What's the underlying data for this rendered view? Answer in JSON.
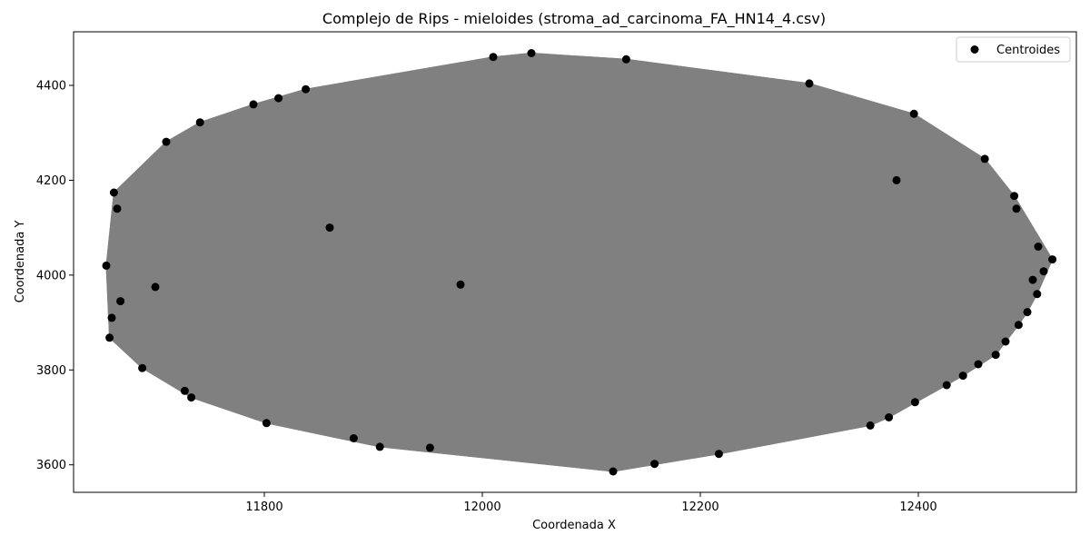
{
  "chart_data": {
    "type": "scatter",
    "title": "Complejo de Rips - mieloides (stroma_ad_carcinoma_FA_HN14_4.csv)",
    "xlabel": "Coordenada X",
    "ylabel": "Coordenada Y",
    "xlim": [
      11625,
      12545
    ],
    "ylim": [
      3542,
      4513
    ],
    "xticks": [
      11800,
      12000,
      12200,
      12400
    ],
    "yticks": [
      3600,
      3800,
      4000,
      4200,
      4400
    ],
    "legend": {
      "position": "top-right",
      "entries": [
        "Centroides"
      ]
    },
    "grid": false,
    "colors": {
      "points": "#000000",
      "edges": "#808080",
      "fill": "#808080"
    },
    "series": [
      {
        "name": "Centroides",
        "x": [
          12045,
          12010,
          12132,
          12300,
          12396,
          12461,
          12488,
          12490,
          12510,
          12523,
          12515,
          12509,
          12500,
          12492,
          12471,
          12455,
          12441,
          12426,
          12397,
          12373,
          12356,
          12217,
          12158,
          12120,
          11952,
          11906,
          11882,
          11802,
          11733,
          11727,
          11688,
          11658,
          11660,
          11665,
          11662,
          11710,
          11741,
          11790,
          11813,
          11838,
          11655,
          11668,
          11700,
          11980,
          11860,
          12380,
          12480,
          12505
        ],
        "y": [
          4468,
          4460,
          4455,
          4404,
          4340,
          4245,
          4167,
          4140,
          4060,
          4033,
          4008,
          3960,
          3922,
          3895,
          3832,
          3812,
          3788,
          3768,
          3732,
          3700,
          3683,
          3623,
          3602,
          3586,
          3636,
          3638,
          3656,
          3688,
          3742,
          3756,
          3804,
          3868,
          3910,
          4140,
          4174,
          4281,
          4322,
          4360,
          4373,
          4392,
          4020,
          3945,
          3975,
          3980,
          4100,
          4200,
          3860,
          3990
        ]
      }
    ]
  }
}
